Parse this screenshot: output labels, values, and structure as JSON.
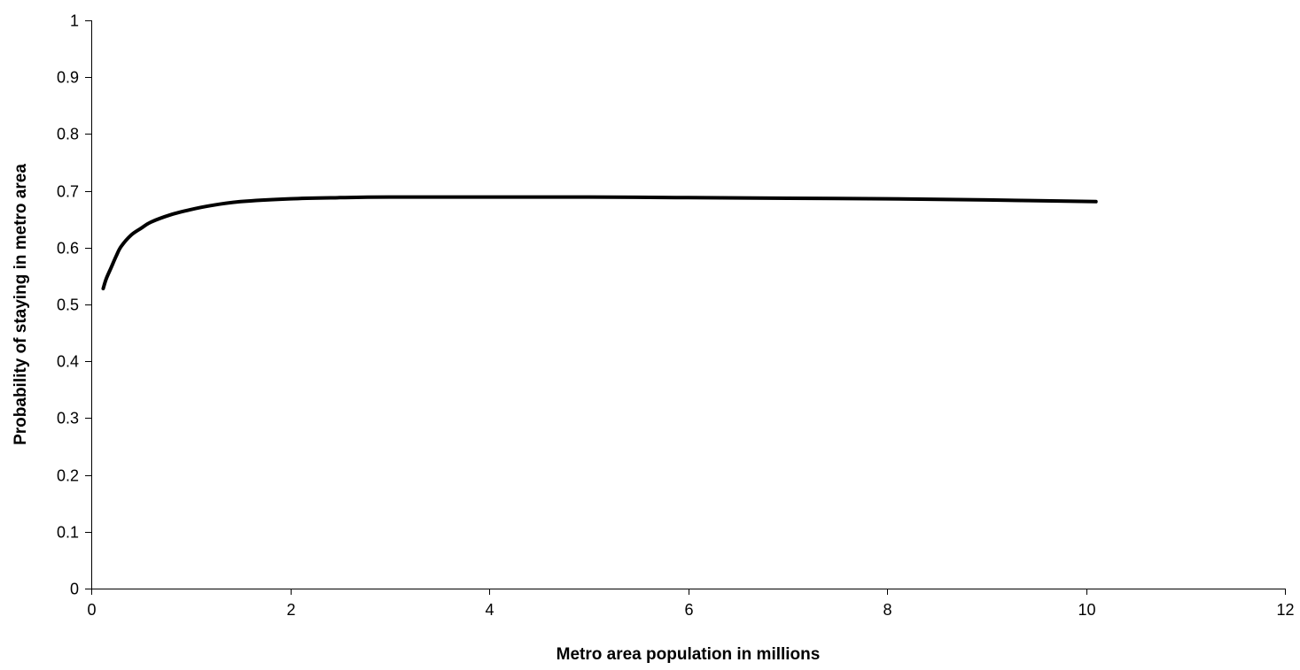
{
  "chart_data": {
    "type": "line",
    "title": "",
    "xlabel": "Metro area population in millions",
    "ylabel": "Probability of staying in metro area",
    "xlim": [
      0,
      12
    ],
    "ylim": [
      0,
      1
    ],
    "x_ticks": [
      0,
      2,
      4,
      6,
      8,
      10,
      12
    ],
    "x_tick_labels": [
      "0",
      "2",
      "4",
      "6",
      "8",
      "10",
      "12"
    ],
    "y_ticks": [
      0,
      0.1,
      0.2,
      0.3,
      0.4,
      0.5,
      0.6,
      0.7,
      0.8,
      0.9,
      1
    ],
    "y_tick_labels": [
      "0",
      "0.1",
      "0.2",
      "0.3",
      "0.4",
      "0.5",
      "0.6",
      "0.7",
      "0.8",
      "0.9",
      "1"
    ],
    "grid": false,
    "legend": "none",
    "series": [
      {
        "color": "#000000",
        "x": [
          0.12,
          0.15,
          0.2,
          0.25,
          0.3,
          0.4,
          0.5,
          0.6,
          0.8,
          1.0,
          1.2,
          1.5,
          2.0,
          2.5,
          3.0,
          4.0,
          5.0,
          6.0,
          7.0,
          8.0,
          9.0,
          10.1
        ],
        "y": [
          0.528,
          0.545,
          0.565,
          0.585,
          0.602,
          0.622,
          0.634,
          0.645,
          0.658,
          0.667,
          0.674,
          0.681,
          0.686,
          0.688,
          0.689,
          0.689,
          0.689,
          0.688,
          0.687,
          0.686,
          0.684,
          0.681
        ]
      }
    ]
  }
}
